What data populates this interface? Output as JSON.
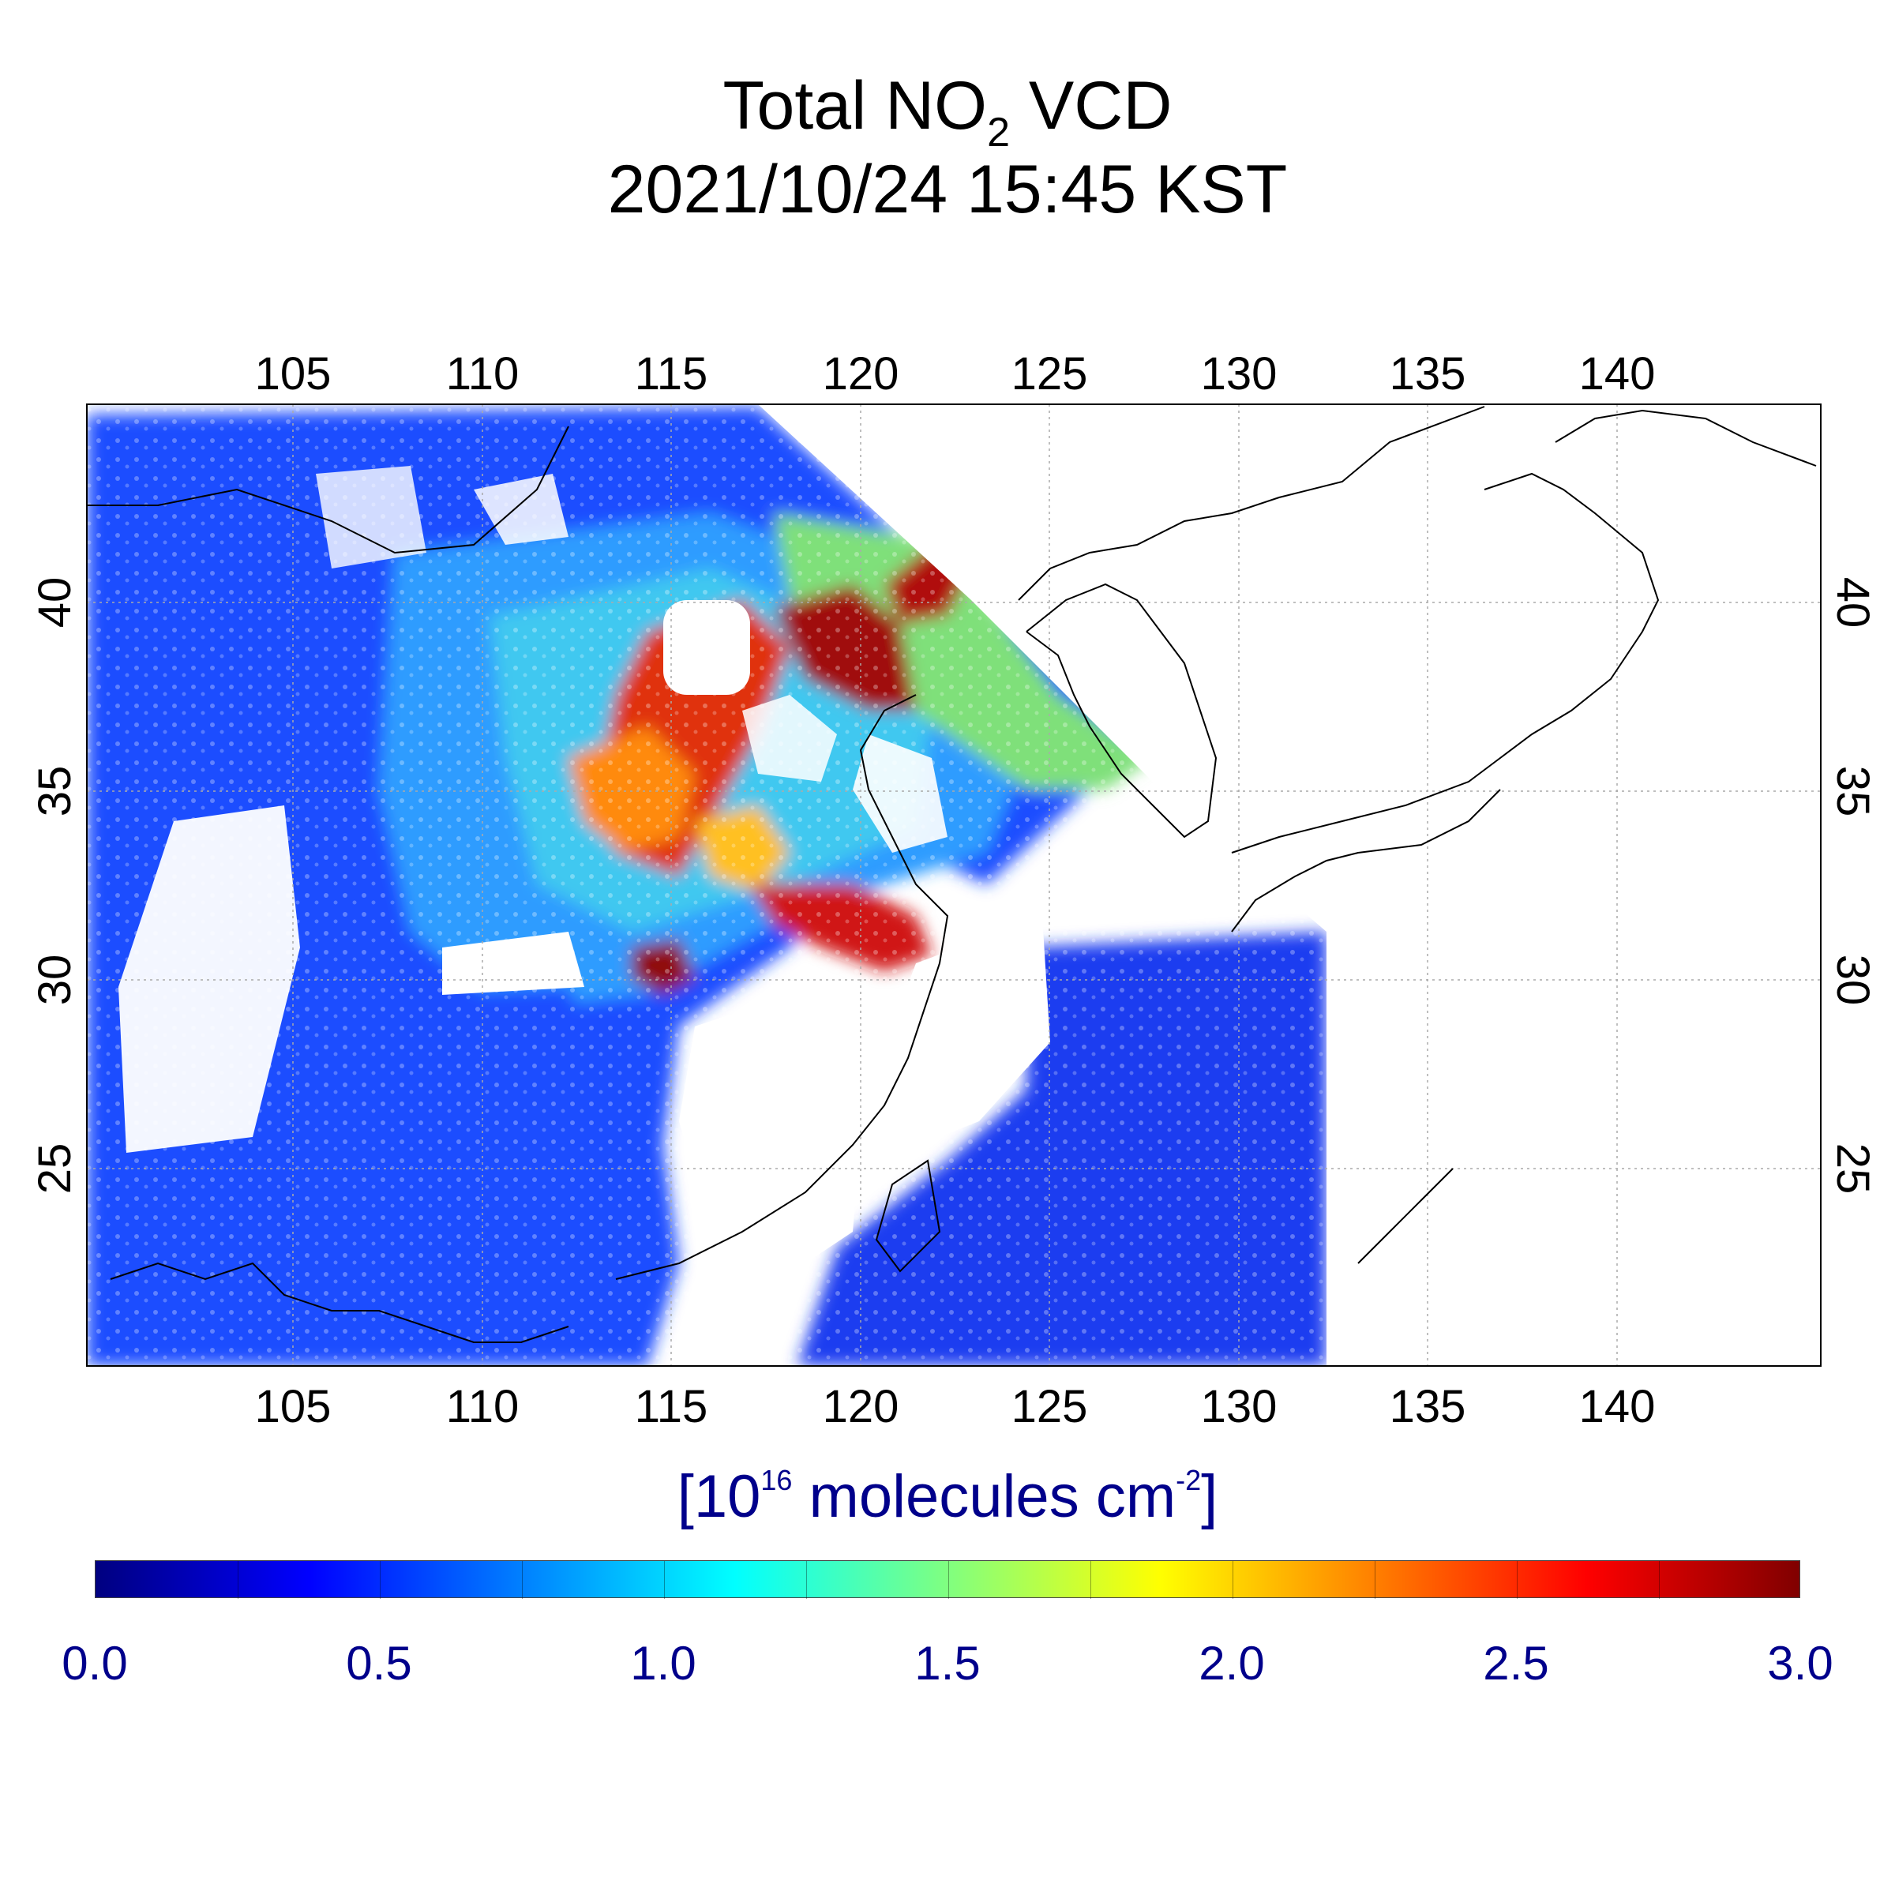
{
  "title_line1_main": "Total NO",
  "title_line1_sub": "2",
  "title_line1_end": " VCD",
  "title_line2": "2021/10/24 15:45 KST",
  "unit": {
    "open": "[10",
    "exp1": "16",
    "mid": " molecules cm",
    "exp2": "-2",
    "close": "]"
  },
  "colorbar": {
    "min": 0.0,
    "max": 3.0,
    "labels": [
      "0.0",
      "0.5",
      "1.0",
      "1.5",
      "2.0",
      "2.5",
      "3.0"
    ],
    "colors": [
      "#000080",
      "#0000ff",
      "#0080ff",
      "#00ffff",
      "#80ff80",
      "#ffff00",
      "#ff8000",
      "#ff0000",
      "#800000"
    ]
  },
  "map": {
    "lon_range": [
      99.5,
      145.5
    ],
    "lat_range": [
      20,
      45.5
    ],
    "lon_ticks": [
      "105",
      "110",
      "115",
      "120",
      "125",
      "130",
      "135",
      "140"
    ],
    "lat_ticks": [
      "25",
      "30",
      "35",
      "40"
    ],
    "gridlines": true
  }
}
